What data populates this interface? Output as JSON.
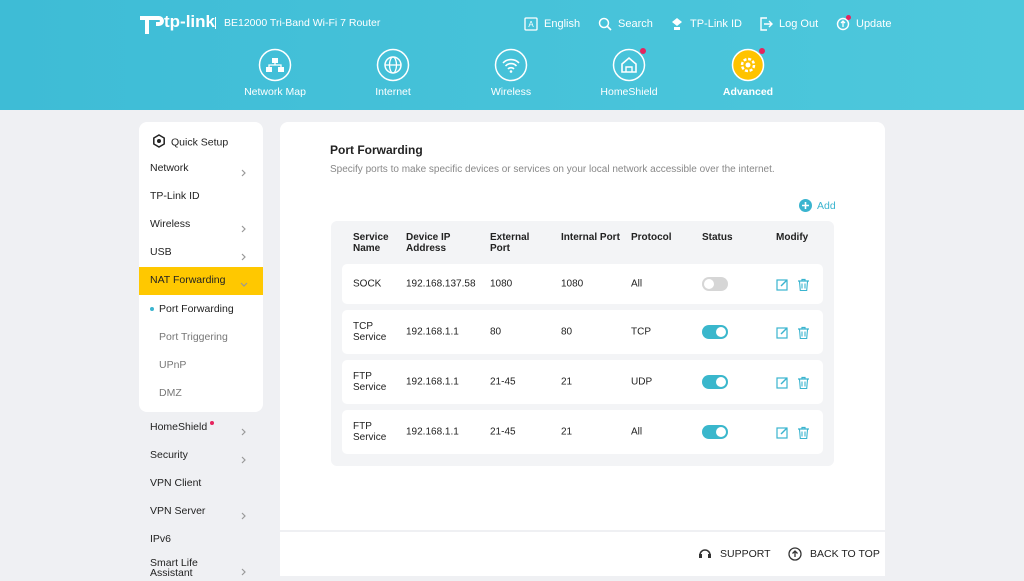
{
  "header": {
    "brand": "tp-link",
    "model": "BE12000 Tri-Band Wi-Fi 7 Router",
    "links": [
      {
        "label": "English",
        "icon": "lang"
      },
      {
        "label": "Search",
        "icon": "search"
      },
      {
        "label": "TP-Link ID",
        "icon": "id"
      },
      {
        "label": "Log Out",
        "icon": "logout"
      },
      {
        "label": "Update",
        "icon": "update",
        "dot": true
      }
    ],
    "tabs": [
      {
        "label": "Network Map",
        "icon": "map"
      },
      {
        "label": "Internet",
        "icon": "globe"
      },
      {
        "label": "Wireless",
        "icon": "wifi"
      },
      {
        "label": "HomeShield",
        "icon": "home",
        "dot": true
      },
      {
        "label": "Advanced",
        "icon": "gear",
        "dot": true,
        "active": true
      }
    ]
  },
  "sidebar": {
    "items": [
      {
        "label": "Quick Setup",
        "icon": true
      },
      {
        "label": "Network",
        "arrow": true
      },
      {
        "label": "TP-Link ID"
      },
      {
        "label": "Wireless",
        "arrow": true
      },
      {
        "label": "USB",
        "arrow": true
      },
      {
        "label": "NAT Forwarding",
        "arrow": true,
        "active": true,
        "children": [
          {
            "label": "Port Forwarding",
            "active": true
          },
          {
            "label": "Port Triggering"
          },
          {
            "label": "UPnP"
          },
          {
            "label": "DMZ"
          }
        ]
      },
      {
        "label": "HomeShield",
        "arrow": true,
        "dot": true
      },
      {
        "label": "Security",
        "arrow": true
      },
      {
        "label": "VPN Client"
      },
      {
        "label": "VPN Server",
        "arrow": true
      },
      {
        "label": "IPv6"
      },
      {
        "label": "Smart Life Assistant",
        "arrow": true
      }
    ]
  },
  "main": {
    "title": "Port Forwarding",
    "description": "Specify ports to make specific devices or services on your local network accessible over the internet.",
    "add": "Add",
    "table": {
      "headers": [
        "Service Name",
        "Device IP Address",
        "External Port",
        "Internal Port",
        "Protocol",
        "Status",
        "Modify"
      ],
      "rows": [
        {
          "cells": [
            "SOCK",
            "192.168.137.58",
            "1080",
            "1080",
            "All"
          ],
          "status": false
        },
        {
          "cells": [
            "TCP Service",
            "192.168.1.1",
            "80",
            "80",
            "TCP"
          ],
          "status": true
        },
        {
          "cells": [
            "FTP Service",
            "192.168.1.1",
            "21-45",
            "21",
            "UDP"
          ],
          "status": true
        },
        {
          "cells": [
            "FTP Service",
            "192.168.1.1",
            "21-45",
            "21",
            "All"
          ],
          "status": true
        }
      ]
    }
  },
  "footer": {
    "support": "SUPPORT",
    "top": "BACK TO TOP"
  }
}
